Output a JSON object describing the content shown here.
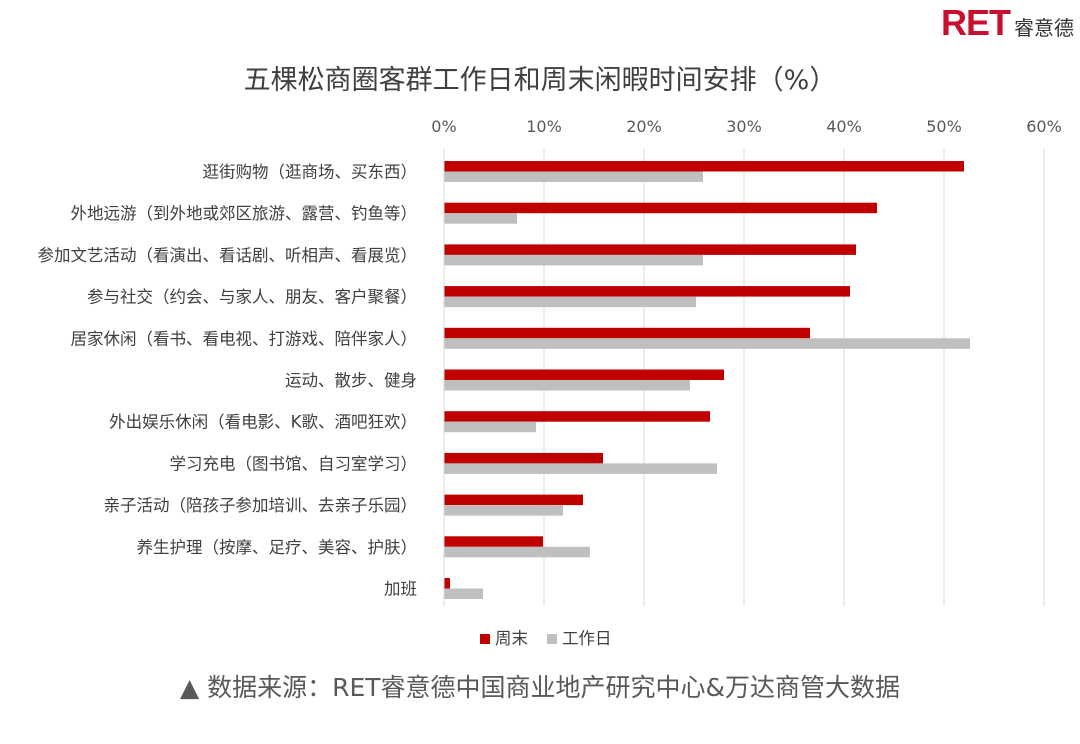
{
  "logo": {
    "mark": "RET",
    "text": "睿意德"
  },
  "source": "▲ 数据来源：RET睿意德中国商业地产研究中心&万达商管大数据",
  "chart_data": {
    "type": "bar",
    "orientation": "horizontal",
    "title": "五棵松商圈客群工作日和周末闲暇时间安排（%）",
    "xlim": [
      0,
      60
    ],
    "xticks": [
      "0%",
      "10%",
      "20%",
      "30%",
      "40%",
      "50%",
      "60%"
    ],
    "grid": true,
    "legend_position": "bottom",
    "categories": [
      "逛街购物（逛商场、买东西）",
      "外地远游（到外地或郊区旅游、露营、钓鱼等）",
      "参加文艺活动（看演出、看话剧、听相声、看展览）",
      "参与社交（约会、与家人、朋友、客户聚餐）",
      "居家休闲（看书、看电视、打游戏、陪伴家人）",
      "运动、散步、健身",
      "外出娱乐休闲（看电影、K歌、酒吧狂欢）",
      "学习充电（图书馆、自习室学习）",
      "亲子活动（陪孩子参加培训、去亲子乐园）",
      "养生护理（按摩、足疗、美容、护肤）",
      "加班"
    ],
    "series": [
      {
        "name": "周末",
        "color": "#c00000",
        "values": [
          52.0,
          43.3,
          41.2,
          40.6,
          36.6,
          28.0,
          26.6,
          15.9,
          13.9,
          9.9,
          0.6
        ]
      },
      {
        "name": "工作日",
        "color": "#bfbfbf",
        "values": [
          25.9,
          7.3,
          25.9,
          25.2,
          52.6,
          24.6,
          9.2,
          27.3,
          11.9,
          14.6,
          3.9
        ]
      }
    ]
  }
}
